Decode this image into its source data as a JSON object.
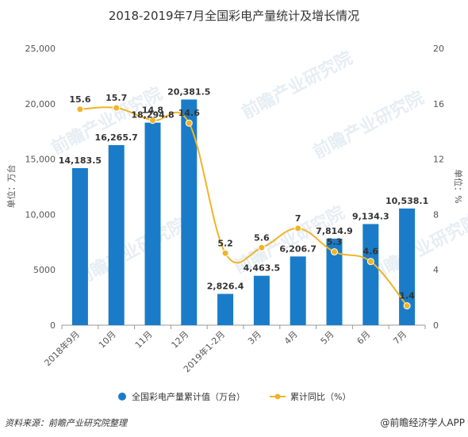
{
  "chart_data": {
    "type": "bar",
    "title": "2018-2019年7月全国彩电产量统计及增长情况",
    "categories": [
      "2018年9月",
      "10月",
      "11月",
      "12月",
      "2019年1-2月",
      "3月",
      "4月",
      "5月",
      "6月",
      "7月"
    ],
    "series": [
      {
        "name": "全国彩电产量累计值（万台）",
        "type": "bar",
        "axis": "left",
        "color": "#1a7cc8",
        "values": [
          14183.5,
          16265.7,
          18294.8,
          20381.5,
          2826.4,
          4463.5,
          6206.7,
          7814.9,
          9134.3,
          10538.1
        ],
        "labels": [
          "14,183.5",
          "16,265.7",
          "18,294.8",
          "20,381.5",
          "2,826.4",
          "4,463.5",
          "6,206.7",
          "7,814.9",
          "9,134.3",
          "10,538.1"
        ]
      },
      {
        "name": "累计同比（%）",
        "type": "line",
        "axis": "right",
        "color": "#f0b427",
        "values": [
          15.6,
          15.7,
          14.8,
          14.6,
          5.2,
          5.6,
          7,
          5.3,
          4.6,
          1.4
        ],
        "labels": [
          "15.6",
          "15.7",
          "14.8",
          "14.6",
          "5.2",
          "5.6",
          "7",
          "5.3",
          "4.6",
          "1.4"
        ]
      }
    ],
    "ylabel": "单位：万台",
    "y2label": "单位：%",
    "ylim": [
      0,
      25000
    ],
    "y2lim": [
      0,
      20
    ],
    "yticks": [
      "0",
      "5000",
      "10,000",
      "15,000",
      "20,000",
      "25,000"
    ],
    "y2ticks": [
      "0",
      "4",
      "8",
      "12",
      "16",
      "20"
    ],
    "legend": "bottom",
    "grid": false
  },
  "source": "资料来源：前瞻产业研究院整理",
  "brand": "@前瞻经济学人APP",
  "watermark": "前瞻产业研究院"
}
